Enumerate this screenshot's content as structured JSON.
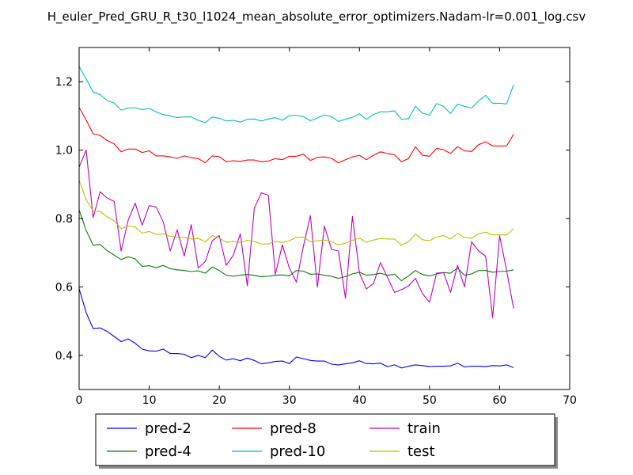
{
  "chart_data": {
    "type": "line",
    "title": "H_euler_Pred_GRU_R_t30_l1024_mean_absolute_error_optimizers.Nadam-lr=0.001_log.csv",
    "xlabel": "",
    "ylabel": "",
    "xlim": [
      0,
      70
    ],
    "ylim": [
      0.3,
      1.3
    ],
    "grid": false,
    "legend_position": "bottom-center",
    "x_ticks": [
      "0",
      "10",
      "20",
      "30",
      "40",
      "50",
      "60",
      "70"
    ],
    "y_ticks": [
      "0.4",
      "0.6",
      "0.8",
      "1.0",
      "1.2"
    ],
    "x_tick_values": [
      0,
      10,
      20,
      30,
      40,
      50,
      60,
      70
    ],
    "y_tick_values": [
      0.4,
      0.6,
      0.8,
      1.0,
      1.2
    ],
    "x": [
      0,
      1,
      2,
      3,
      4,
      5,
      6,
      7,
      8,
      9,
      10,
      11,
      12,
      13,
      14,
      15,
      16,
      17,
      18,
      19,
      20,
      21,
      22,
      23,
      24,
      25,
      26,
      27,
      28,
      29,
      30,
      31,
      32,
      33,
      34,
      35,
      36,
      37,
      38,
      39,
      40,
      41,
      42,
      43,
      44,
      45,
      46,
      47,
      48,
      49,
      50,
      51,
      52,
      53,
      54,
      55,
      56,
      57,
      58,
      59,
      60,
      61,
      62
    ],
    "series": [
      {
        "name": "pred-2",
        "color": "#0000ff",
        "values": [
          0.595,
          0.525,
          0.478,
          0.48,
          0.47,
          0.455,
          0.44,
          0.448,
          0.435,
          0.418,
          0.413,
          0.412,
          0.418,
          0.405,
          0.405,
          0.403,
          0.393,
          0.4,
          0.393,
          0.415,
          0.397,
          0.386,
          0.39,
          0.384,
          0.392,
          0.385,
          0.375,
          0.378,
          0.382,
          0.383,
          0.376,
          0.395,
          0.39,
          0.385,
          0.383,
          0.383,
          0.374,
          0.372,
          0.375,
          0.378,
          0.384,
          0.376,
          0.375,
          0.377,
          0.367,
          0.372,
          0.363,
          0.368,
          0.372,
          0.37,
          0.367,
          0.368,
          0.368,
          0.369,
          0.377,
          0.366,
          0.368,
          0.368,
          0.367,
          0.37,
          0.369,
          0.372,
          0.364
        ]
      },
      {
        "name": "pred-4",
        "color": "#008000",
        "values": [
          0.825,
          0.765,
          0.722,
          0.724,
          0.706,
          0.693,
          0.68,
          0.688,
          0.682,
          0.66,
          0.662,
          0.656,
          0.663,
          0.653,
          0.65,
          0.648,
          0.645,
          0.647,
          0.64,
          0.658,
          0.648,
          0.634,
          0.631,
          0.634,
          0.637,
          0.633,
          0.63,
          0.631,
          0.634,
          0.635,
          0.632,
          0.648,
          0.646,
          0.637,
          0.638,
          0.634,
          0.631,
          0.625,
          0.63,
          0.638,
          0.643,
          0.634,
          0.636,
          0.64,
          0.634,
          0.637,
          0.618,
          0.632,
          0.648,
          0.636,
          0.632,
          0.638,
          0.642,
          0.64,
          0.655,
          0.634,
          0.638,
          0.648,
          0.648,
          0.643,
          0.645,
          0.646,
          0.65
        ]
      },
      {
        "name": "pred-8",
        "color": "#ff0000",
        "values": [
          1.125,
          1.088,
          1.048,
          1.043,
          1.028,
          1.018,
          0.995,
          1.003,
          1.003,
          0.993,
          0.998,
          0.983,
          0.983,
          0.98,
          0.976,
          0.983,
          0.978,
          0.975,
          0.963,
          0.983,
          0.981,
          0.966,
          0.969,
          0.967,
          0.971,
          0.971,
          0.966,
          0.968,
          0.975,
          0.972,
          0.982,
          0.982,
          0.988,
          0.97,
          0.979,
          0.98,
          0.976,
          0.963,
          0.972,
          0.98,
          0.985,
          0.972,
          0.985,
          0.995,
          0.99,
          0.986,
          0.966,
          0.975,
          1.01,
          0.985,
          0.982,
          1.005,
          1.001,
          0.99,
          1.01,
          0.998,
          0.996,
          1.016,
          1.024,
          1.012,
          1.012,
          1.012,
          1.046
        ]
      },
      {
        "name": "pred-10",
        "color": "#00bfbf",
        "values": [
          1.245,
          1.208,
          1.17,
          1.162,
          1.145,
          1.138,
          1.117,
          1.123,
          1.124,
          1.118,
          1.122,
          1.112,
          1.104,
          1.1,
          1.095,
          1.097,
          1.097,
          1.087,
          1.08,
          1.097,
          1.093,
          1.085,
          1.087,
          1.082,
          1.09,
          1.091,
          1.085,
          1.091,
          1.095,
          1.087,
          1.101,
          1.102,
          1.098,
          1.086,
          1.094,
          1.103,
          1.098,
          1.084,
          1.09,
          1.096,
          1.106,
          1.09,
          1.104,
          1.112,
          1.112,
          1.115,
          1.09,
          1.092,
          1.128,
          1.108,
          1.102,
          1.136,
          1.128,
          1.107,
          1.134,
          1.128,
          1.123,
          1.144,
          1.16,
          1.137,
          1.137,
          1.135,
          1.191
        ]
      },
      {
        "name": "train",
        "color": "#bf00bf",
        "values": [
          0.95,
          1.0,
          0.803,
          0.878,
          0.86,
          0.85,
          0.705,
          0.795,
          0.845,
          0.78,
          0.838,
          0.833,
          0.79,
          0.705,
          0.767,
          0.69,
          0.782,
          0.655,
          0.674,
          0.735,
          0.75,
          0.663,
          0.693,
          0.755,
          0.603,
          0.83,
          0.875,
          0.868,
          0.637,
          0.723,
          0.655,
          0.614,
          0.718,
          0.808,
          0.599,
          0.778,
          0.71,
          0.705,
          0.567,
          0.806,
          0.64,
          0.594,
          0.61,
          0.671,
          0.628,
          0.584,
          0.592,
          0.603,
          0.625,
          0.58,
          0.555,
          0.64,
          0.642,
          0.584,
          0.663,
          0.6,
          0.732,
          0.705,
          0.69,
          0.51,
          0.75,
          0.648,
          0.537
        ]
      },
      {
        "name": "test",
        "color": "#bfbf00",
        "values": [
          0.912,
          0.855,
          0.822,
          0.82,
          0.805,
          0.793,
          0.77,
          0.778,
          0.775,
          0.757,
          0.762,
          0.753,
          0.755,
          0.748,
          0.745,
          0.745,
          0.74,
          0.742,
          0.732,
          0.75,
          0.743,
          0.73,
          0.733,
          0.73,
          0.736,
          0.733,
          0.725,
          0.726,
          0.733,
          0.73,
          0.735,
          0.745,
          0.746,
          0.732,
          0.735,
          0.737,
          0.733,
          0.722,
          0.728,
          0.736,
          0.743,
          0.73,
          0.737,
          0.742,
          0.74,
          0.74,
          0.722,
          0.732,
          0.754,
          0.738,
          0.735,
          0.746,
          0.75,
          0.74,
          0.756,
          0.745,
          0.742,
          0.755,
          0.76,
          0.752,
          0.752,
          0.752,
          0.77
        ]
      }
    ]
  }
}
